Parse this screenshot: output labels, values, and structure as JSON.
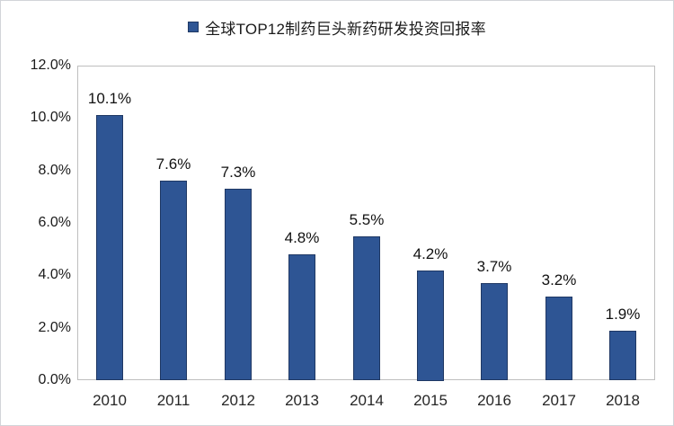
{
  "page": {
    "background": "#ffffff",
    "frame_border_color": "#d2d4d9"
  },
  "legend": {
    "label": "全球TOP12制药巨头新药研发投资回报率",
    "marker_color": "#2e5594",
    "marker_border_color": "#1f3864"
  },
  "chart_data": {
    "type": "bar",
    "title": "全球TOP12制药巨头新药研发投资回报率",
    "categories": [
      "2010",
      "2011",
      "2012",
      "2013",
      "2014",
      "2015",
      "2016",
      "2017",
      "2018"
    ],
    "values": [
      10.1,
      7.6,
      7.3,
      4.8,
      5.5,
      4.2,
      3.7,
      3.2,
      1.9
    ],
    "data_labels": [
      "10.1%",
      "7.6%",
      "7.3%",
      "4.8%",
      "5.5%",
      "4.2%",
      "3.7%",
      "3.2%",
      "1.9%"
    ],
    "y_ticks": [
      "12.0%",
      "10.0%",
      "8.0%",
      "6.0%",
      "4.0%",
      "2.0%",
      "0.0%"
    ],
    "ylim": [
      0,
      12
    ],
    "xlabel": "",
    "ylabel": "",
    "grid": false,
    "legend_position": "top",
    "bar_color": "#2e5594",
    "bar_border_color": "#1f3864",
    "plot_border_color": "#bfbfbf",
    "label_text_color": "#111111",
    "axis_text_color": "#262626"
  }
}
